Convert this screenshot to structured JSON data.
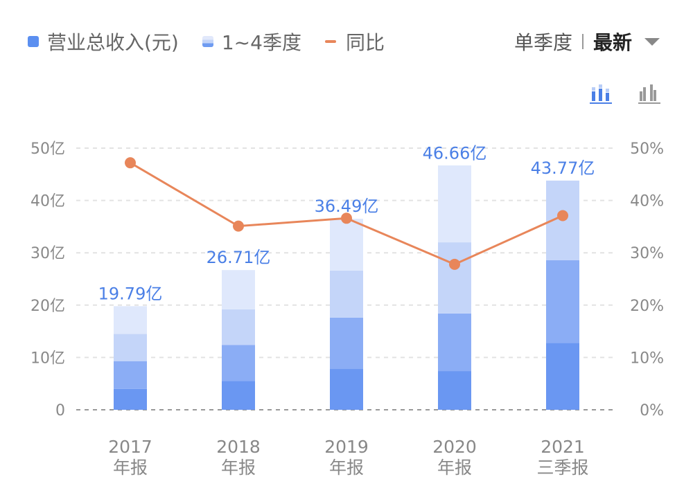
{
  "legend": {
    "revenue": "营业总收入(元)",
    "quarters": "1~4季度",
    "yoy": "同比"
  },
  "controls": {
    "label": "单季度",
    "selected": "最新"
  },
  "icons": {
    "stacked": "stacked-bar-chart-icon",
    "grouped": "grouped-bar-chart-icon",
    "active": "stacked"
  },
  "colors": {
    "q1": "#6a97f2",
    "q2": "#8badf5",
    "q3": "#c4d5f9",
    "q4": "#dfe8fc",
    "line": "#e8865a",
    "label": "#4a7fe6"
  },
  "chart_data": {
    "type": "bar",
    "categories": [
      [
        "2017",
        "年报"
      ],
      [
        "2018",
        "年报"
      ],
      [
        "2019",
        "年报"
      ],
      [
        "2020",
        "年报"
      ],
      [
        "2021",
        "三季报"
      ]
    ],
    "stacked_quarters": [
      [
        4.0,
        5.3,
        5.2,
        5.3
      ],
      [
        5.5,
        6.9,
        6.8,
        7.5
      ],
      [
        7.8,
        9.8,
        9.0,
        9.9
      ],
      [
        7.4,
        11.0,
        13.6,
        14.7
      ],
      [
        12.8,
        15.8,
        15.2
      ]
    ],
    "totals": [
      19.79,
      26.71,
      36.49,
      46.66,
      43.77
    ],
    "total_labels": [
      "19.79亿",
      "26.71亿",
      "36.49亿",
      "46.66亿",
      "43.77亿"
    ],
    "yoy_percent": [
      47.2,
      35.1,
      36.6,
      27.8,
      37.1
    ],
    "left_axis": {
      "ticks": [
        0,
        10,
        20,
        30,
        40,
        50
      ],
      "labels": [
        "0",
        "10亿",
        "20亿",
        "30亿",
        "40亿",
        "50亿"
      ],
      "ylim": [
        0,
        50
      ]
    },
    "right_axis": {
      "ticks": [
        0,
        10,
        20,
        30,
        40,
        50
      ],
      "labels": [
        "0%",
        "10%",
        "20%",
        "30%",
        "40%",
        "50%"
      ],
      "ylim": [
        0,
        50
      ]
    },
    "grid": true
  }
}
